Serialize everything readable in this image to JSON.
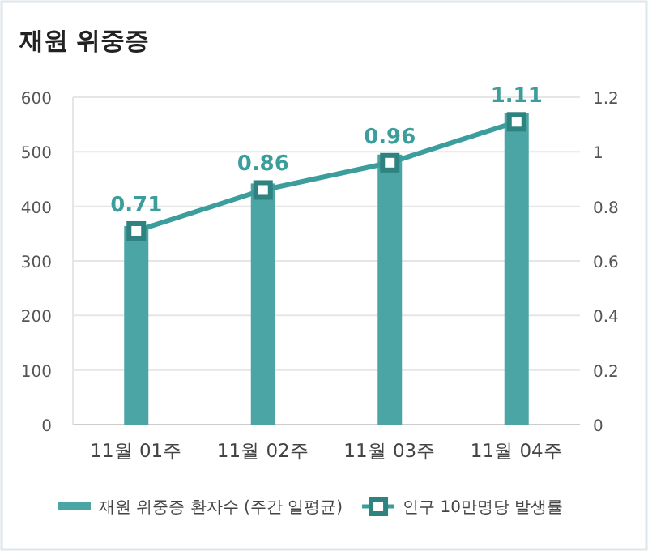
{
  "chart_data": {
    "type": "bar",
    "title": "재원 위중증",
    "categories": [
      "11월 01주",
      "11월 02주",
      "11월 03주",
      "11월 04주"
    ],
    "series": [
      {
        "name": "재원 위중증 환자수 (주간 일평균)",
        "color": "#4ba5a4",
        "values": [
          364,
          442,
          495,
          571
        ]
      },
      {
        "name": "인구 10만명당 발생률",
        "type": "line",
        "axis": "y2",
        "color": "#3b9e9c",
        "marker": "square",
        "values": [
          0.71,
          0.86,
          0.96,
          1.11
        ],
        "value_labels": [
          "0.71",
          "0.86",
          "0.96",
          "1.11"
        ]
      }
    ],
    "ylim": [
      0,
      600
    ],
    "yticks": [
      0,
      100,
      200,
      300,
      400,
      500,
      600
    ],
    "y2lim": [
      0,
      1.2
    ],
    "y2ticks": [
      0,
      0.2,
      0.4,
      0.6,
      0.8,
      1,
      1.2
    ],
    "grid": "y",
    "legend": "bottom"
  }
}
